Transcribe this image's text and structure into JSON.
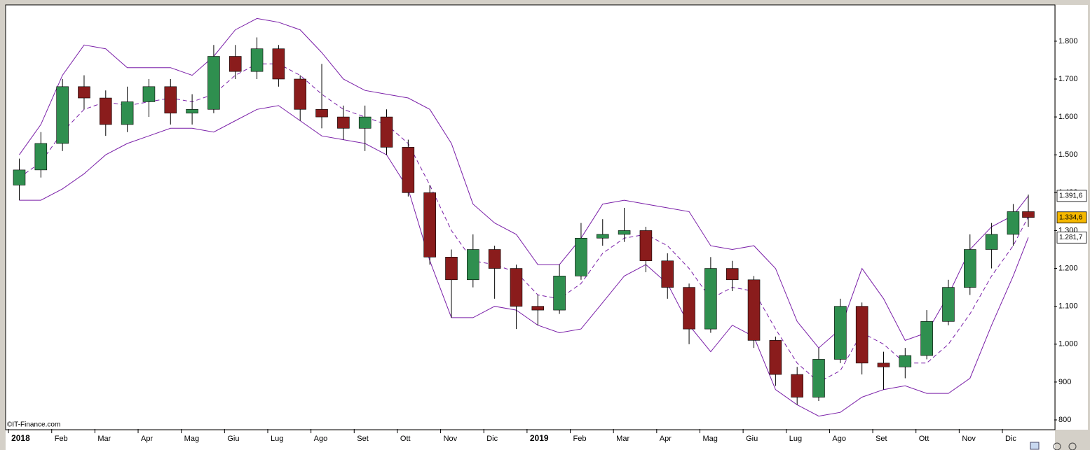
{
  "chart_data": {
    "type": "candlestick",
    "watermark": "©IT-Finance.com",
    "xlim": [
      -0.05,
      24.2
    ],
    "ylim": [
      776,
      1894
    ],
    "xticks": [
      {
        "value": 0,
        "label": "2018"
      },
      {
        "value": 1,
        "label": "Feb"
      },
      {
        "value": 2,
        "label": "Mar"
      },
      {
        "value": 3,
        "label": "Apr"
      },
      {
        "value": 4,
        "label": "Mag"
      },
      {
        "value": 5,
        "label": "Giu"
      },
      {
        "value": 6,
        "label": "Lug"
      },
      {
        "value": 7,
        "label": "Ago"
      },
      {
        "value": 8,
        "label": "Set"
      },
      {
        "value": 9,
        "label": "Ott"
      },
      {
        "value": 10,
        "label": "Nov"
      },
      {
        "value": 11,
        "label": "Dic"
      },
      {
        "value": 12,
        "label": "2019"
      },
      {
        "value": 13,
        "label": "Feb"
      },
      {
        "value": 14,
        "label": "Mar"
      },
      {
        "value": 15,
        "label": "Apr"
      },
      {
        "value": 16,
        "label": "Mag"
      },
      {
        "value": 17,
        "label": "Giu"
      },
      {
        "value": 18,
        "label": "Lug"
      },
      {
        "value": 19,
        "label": "Ago"
      },
      {
        "value": 20,
        "label": "Set"
      },
      {
        "value": 21,
        "label": "Ott"
      },
      {
        "value": 22,
        "label": "Nov"
      },
      {
        "value": 23,
        "label": "Dic"
      }
    ],
    "yticks": [
      800,
      900,
      {
        "value": 1000,
        "label": "1.000"
      },
      {
        "value": 1100,
        "label": "1.100"
      },
      {
        "value": 1200,
        "label": "1.200"
      },
      {
        "value": 1300,
        "label": "1.300"
      },
      {
        "value": 1400,
        "label": "1.400"
      },
      {
        "value": 1500,
        "label": "1.500"
      },
      {
        "value": 1600,
        "label": "1.600"
      },
      {
        "value": 1700,
        "label": "1.700"
      },
      {
        "value": 1800,
        "label": "1.800"
      }
    ],
    "x": [
      0.25,
      0.75,
      1.25,
      1.75,
      2.25,
      2.75,
      3.25,
      3.75,
      4.25,
      4.75,
      5.25,
      5.75,
      6.25,
      6.75,
      7.25,
      7.75,
      8.25,
      8.75,
      9.25,
      9.75,
      10.25,
      10.75,
      11.25,
      11.75,
      12.25,
      12.75,
      13.25,
      13.75,
      14.25,
      14.75,
      15.25,
      15.75,
      16.25,
      16.75,
      17.25,
      17.75,
      18.25,
      18.75,
      19.25,
      19.75,
      20.25,
      20.75,
      21.25,
      21.75,
      22.25,
      22.75,
      23.25,
      23.6
    ],
    "open": [
      1420,
      1460,
      1530,
      1680,
      1650,
      1580,
      1640,
      1680,
      1610,
      1620,
      1760,
      1720,
      1780,
      1700,
      1620,
      1600,
      1570,
      1600,
      1520,
      1400,
      1230,
      1170,
      1250,
      1200,
      1100,
      1090,
      1180,
      1280,
      1290,
      1300,
      1220,
      1150,
      1040,
      1200,
      1170,
      1010,
      920,
      860,
      960,
      1100,
      950,
      940,
      970,
      1060,
      1150,
      1250,
      1290,
      1350
    ],
    "high": [
      1490,
      1560,
      1700,
      1710,
      1670,
      1680,
      1700,
      1700,
      1660,
      1790,
      1790,
      1810,
      1790,
      1710,
      1740,
      1630,
      1630,
      1620,
      1540,
      1420,
      1250,
      1290,
      1260,
      1210,
      1130,
      1210,
      1320,
      1330,
      1360,
      1310,
      1240,
      1160,
      1230,
      1220,
      1180,
      1020,
      940,
      990,
      1120,
      1110,
      980,
      990,
      1090,
      1170,
      1290,
      1320,
      1370,
      1395
    ],
    "low": [
      1380,
      1440,
      1510,
      1620,
      1550,
      1560,
      1600,
      1580,
      1580,
      1610,
      1700,
      1700,
      1680,
      1590,
      1570,
      1540,
      1510,
      1500,
      1390,
      1210,
      1070,
      1150,
      1120,
      1040,
      1050,
      1080,
      1170,
      1260,
      1270,
      1190,
      1120,
      1000,
      1030,
      1140,
      990,
      890,
      840,
      850,
      950,
      920,
      880,
      910,
      960,
      1050,
      1130,
      1200,
      1260,
      1310
    ],
    "close": [
      1460,
      1530,
      1680,
      1650,
      1580,
      1640,
      1680,
      1610,
      1620,
      1760,
      1720,
      1780,
      1700,
      1620,
      1600,
      1570,
      1600,
      1520,
      1400,
      1230,
      1170,
      1250,
      1200,
      1100,
      1090,
      1180,
      1280,
      1290,
      1300,
      1220,
      1150,
      1040,
      1200,
      1170,
      1010,
      920,
      860,
      960,
      1100,
      950,
      940,
      970,
      1060,
      1150,
      1250,
      1290,
      1350,
      1334.6
    ],
    "up_color": "#2f8f4f",
    "down_color": "#8a1c1c",
    "close_label": "1.334,6",
    "close_label_color": "#f5b800",
    "band_color": "#7a1fa8",
    "upper": {
      "values": [
        1500,
        1580,
        1710,
        1790,
        1780,
        1730,
        1730,
        1730,
        1710,
        1760,
        1830,
        1860,
        1850,
        1830,
        1770,
        1700,
        1670,
        1660,
        1650,
        1620,
        1530,
        1370,
        1320,
        1290,
        1210,
        1210,
        1280,
        1370,
        1380,
        1370,
        1360,
        1350,
        1260,
        1250,
        1260,
        1200,
        1060,
        990,
        1040,
        1200,
        1120,
        1010,
        1030,
        1130,
        1250,
        1310,
        1340,
        1391.6
      ],
      "label": "1.391,6"
    },
    "middle": {
      "values": [
        1440,
        1480,
        1560,
        1620,
        1640,
        1630,
        1640,
        1650,
        1640,
        1660,
        1710,
        1740,
        1740,
        1710,
        1660,
        1620,
        1600,
        1580,
        1530,
        1420,
        1300,
        1220,
        1210,
        1190,
        1130,
        1120,
        1160,
        1240,
        1280,
        1290,
        1260,
        1200,
        1120,
        1150,
        1140,
        1040,
        950,
        900,
        930,
        1030,
        1000,
        950,
        950,
        1000,
        1080,
        1180,
        1260,
        1336.6
      ],
      "dashed": true
    },
    "lower": {
      "values": [
        1380,
        1380,
        1410,
        1450,
        1500,
        1530,
        1550,
        1570,
        1570,
        1560,
        1590,
        1620,
        1630,
        1590,
        1550,
        1540,
        1530,
        1500,
        1410,
        1220,
        1070,
        1070,
        1100,
        1090,
        1050,
        1030,
        1040,
        1110,
        1180,
        1210,
        1160,
        1050,
        980,
        1050,
        1020,
        880,
        840,
        810,
        820,
        860,
        880,
        890,
        870,
        870,
        910,
        1050,
        1180,
        1281.7
      ],
      "label": "1.281,7"
    }
  }
}
